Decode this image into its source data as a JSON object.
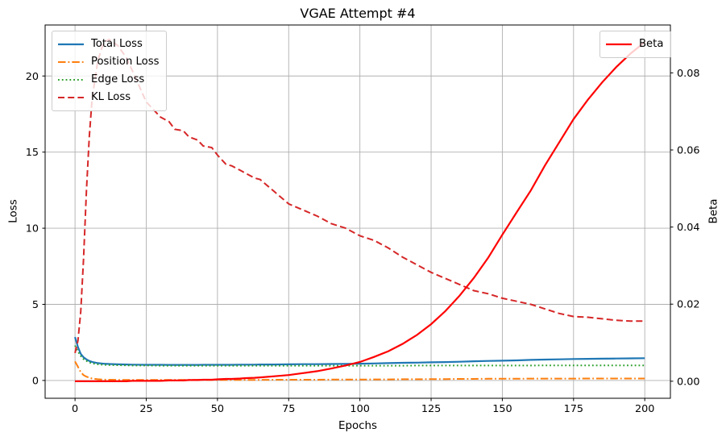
{
  "title": "VGAE Attempt #4",
  "chart_data": {
    "type": "line",
    "title": "VGAE Attempt #4",
    "xlabel": "Epochs",
    "ylabel_left": "Loss",
    "ylabel_right": "Beta",
    "grid": true,
    "xlim": [
      -10.5,
      209
    ],
    "ylim_left": [
      -1.17,
      23.35
    ],
    "ylim_right": [
      -0.00442,
      0.09242
    ],
    "x_ticks": [
      0,
      25,
      50,
      75,
      100,
      125,
      150,
      175,
      200
    ],
    "y_left_ticks": [
      0,
      5,
      10,
      15,
      20
    ],
    "y_right_ticks": [
      0,
      0.02,
      0.04,
      0.06,
      0.08
    ],
    "y_right_tick_labels": [
      "0.00",
      "0.02",
      "0.04",
      "0.06",
      "0.08"
    ],
    "x": [
      0,
      1,
      2,
      3,
      4,
      5,
      6,
      8,
      10,
      12,
      15,
      18,
      20,
      25,
      30,
      33,
      35,
      38,
      40,
      43,
      45,
      48,
      50,
      53,
      55,
      58,
      60,
      63,
      65,
      70,
      75,
      80,
      85,
      90,
      95,
      100,
      105,
      110,
      115,
      120,
      125,
      130,
      135,
      140,
      145,
      150,
      155,
      160,
      165,
      170,
      175,
      180,
      185,
      190,
      195,
      200
    ],
    "series": [
      {
        "name": "Total Loss",
        "axis": "left",
        "color": "#1f77b4",
        "style": "solid",
        "width": 2.2,
        "values": [
          2.85,
          2.2,
          1.75,
          1.52,
          1.38,
          1.28,
          1.22,
          1.14,
          1.1,
          1.08,
          1.06,
          1.05,
          1.04,
          1.03,
          1.03,
          1.02,
          1.02,
          1.02,
          1.02,
          1.02,
          1.03,
          1.03,
          1.03,
          1.03,
          1.03,
          1.04,
          1.04,
          1.04,
          1.05,
          1.05,
          1.06,
          1.07,
          1.07,
          1.08,
          1.09,
          1.1,
          1.12,
          1.14,
          1.16,
          1.17,
          1.19,
          1.21,
          1.23,
          1.26,
          1.28,
          1.3,
          1.32,
          1.35,
          1.37,
          1.39,
          1.41,
          1.42,
          1.43,
          1.44,
          1.45,
          1.46
        ]
      },
      {
        "name": "Position Loss",
        "axis": "left",
        "color": "#ff7f0e",
        "style": "dashdot",
        "width": 2,
        "values": [
          1.25,
          0.9,
          0.55,
          0.35,
          0.25,
          0.18,
          0.13,
          0.08,
          0.06,
          0.05,
          0.04,
          0.03,
          0.03,
          0.03,
          0.03,
          0.03,
          0.03,
          0.03,
          0.03,
          0.03,
          0.03,
          0.03,
          0.04,
          0.04,
          0.04,
          0.04,
          0.04,
          0.04,
          0.04,
          0.05,
          0.05,
          0.05,
          0.05,
          0.06,
          0.06,
          0.06,
          0.07,
          0.07,
          0.08,
          0.08,
          0.09,
          0.09,
          0.1,
          0.1,
          0.11,
          0.11,
          0.11,
          0.12,
          0.12,
          0.12,
          0.12,
          0.13,
          0.13,
          0.13,
          0.13,
          0.13
        ]
      },
      {
        "name": "Edge Loss",
        "axis": "left",
        "color": "#2ca02c",
        "style": "dotted",
        "width": 2,
        "values": [
          2.3,
          1.9,
          1.6,
          1.4,
          1.28,
          1.18,
          1.12,
          1.06,
          1.03,
          1.01,
          1.0,
          0.99,
          0.98,
          0.98,
          0.97,
          0.97,
          0.97,
          0.97,
          0.97,
          0.97,
          0.97,
          0.97,
          0.97,
          0.97,
          0.97,
          0.97,
          0.97,
          0.97,
          0.97,
          0.97,
          0.97,
          0.97,
          0.97,
          0.97,
          0.97,
          0.97,
          0.97,
          0.97,
          0.97,
          0.98,
          0.98,
          0.98,
          0.98,
          0.98,
          0.98,
          0.98,
          0.98,
          0.98,
          0.99,
          0.99,
          0.99,
          0.99,
          0.99,
          0.99,
          0.99,
          0.99
        ]
      },
      {
        "name": "KL Loss",
        "axis": "left",
        "color": "#d62728",
        "style": "dashed",
        "width": 2,
        "values": [
          1.8,
          2.6,
          4.5,
          8.0,
          12.5,
          16.0,
          18.5,
          21.0,
          22.2,
          22.4,
          22.0,
          21.2,
          20.4,
          18.3,
          17.3,
          17.0,
          16.5,
          16.4,
          16.0,
          15.8,
          15.4,
          15.3,
          14.8,
          14.2,
          14.1,
          13.8,
          13.6,
          13.3,
          13.2,
          12.4,
          11.6,
          11.2,
          10.8,
          10.3,
          10.0,
          9.5,
          9.2,
          8.7,
          8.1,
          7.6,
          7.1,
          6.7,
          6.3,
          5.9,
          5.7,
          5.4,
          5.2,
          5.0,
          4.7,
          4.4,
          4.2,
          4.15,
          4.05,
          3.95,
          3.9,
          3.9
        ]
      },
      {
        "name": "Beta",
        "axis": "right",
        "color": "#ff0000",
        "style": "solid",
        "width": 2.2,
        "values": [
          0,
          0,
          0,
          0,
          0,
          0,
          0,
          0,
          0,
          0,
          0,
          0,
          0.0001,
          0.0001,
          0.0001,
          0.0002,
          0.0002,
          0.0002,
          0.0003,
          0.0003,
          0.0004,
          0.0004,
          0.0005,
          0.0006,
          0.0006,
          0.0007,
          0.0008,
          0.0009,
          0.001,
          0.0013,
          0.0016,
          0.0021,
          0.0026,
          0.0033,
          0.0041,
          0.005,
          0.0063,
          0.0078,
          0.0097,
          0.012,
          0.0148,
          0.0182,
          0.0222,
          0.0268,
          0.032,
          0.038,
          0.0438,
          0.0495,
          0.056,
          0.062,
          0.068,
          0.073,
          0.0775,
          0.0815,
          0.085,
          0.088
        ]
      }
    ],
    "legend_left": {
      "position": "upper-left",
      "entries": [
        "Total Loss",
        "Position Loss",
        "Edge Loss",
        "KL Loss"
      ]
    },
    "legend_right": {
      "position": "upper-right",
      "entries": [
        "Beta"
      ]
    },
    "colors": {
      "grid": "#b0b0b0",
      "spine": "#000000",
      "background": "#ffffff"
    }
  }
}
